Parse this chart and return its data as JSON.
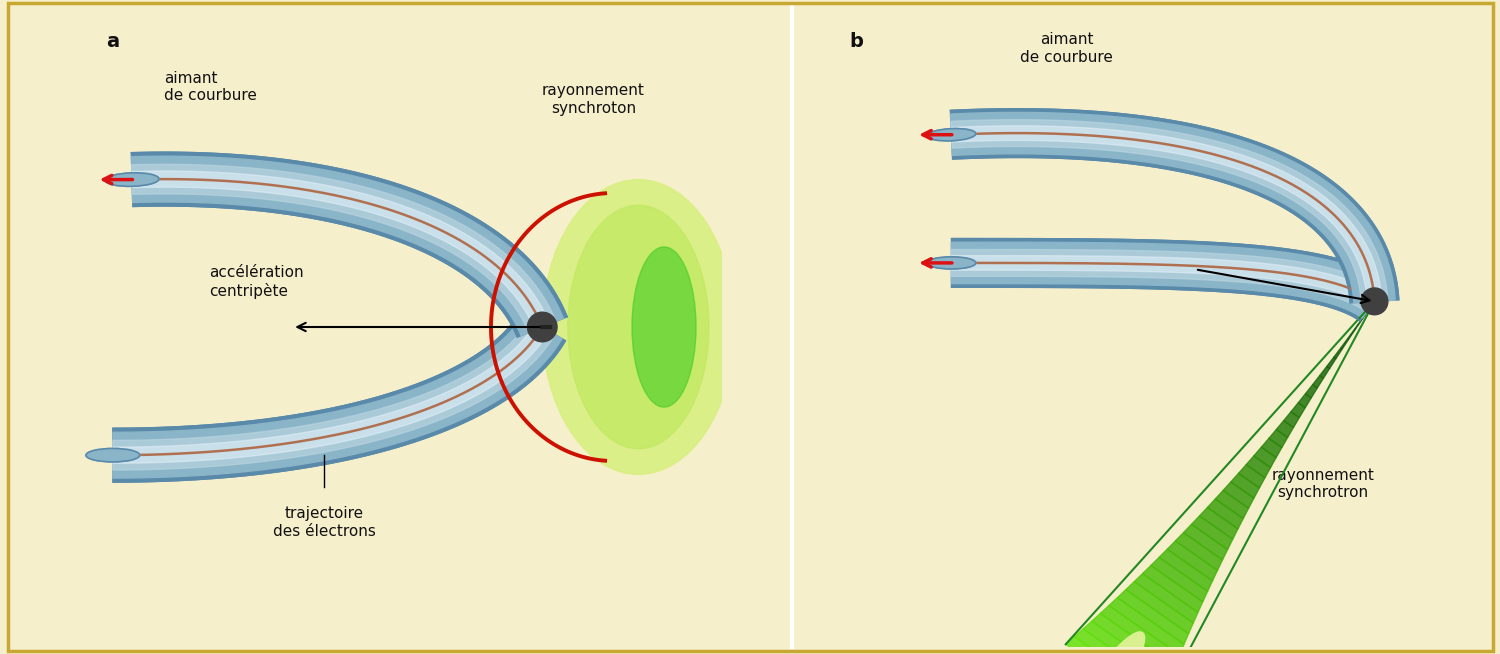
{
  "bg_color": "#f5efcc",
  "border_color": "#c8a832",
  "tube_color_main": "#8ab4c8",
  "tube_color_dark": "#5a8aaa",
  "tube_color_light": "#b8d4e0",
  "electron_color": "#b07050",
  "arrow_red": "#dd1111",
  "arrow_black": "#111111",
  "green_fill": "#c8e870",
  "green_mid": "#70cc30",
  "green_dark": "#228822",
  "green_glow": "#d8f090",
  "text_color": "#111111",
  "label_a": "a",
  "label_b": "b",
  "text_aimant": "aimant\nde courbure",
  "text_rayon_a": "rayonnement\nsynchroton",
  "text_rayon_b": "rayonnement\nsynchrotron",
  "text_accel": "accélération\ncentripète",
  "text_traj": "trajectoire\ndes électrons"
}
